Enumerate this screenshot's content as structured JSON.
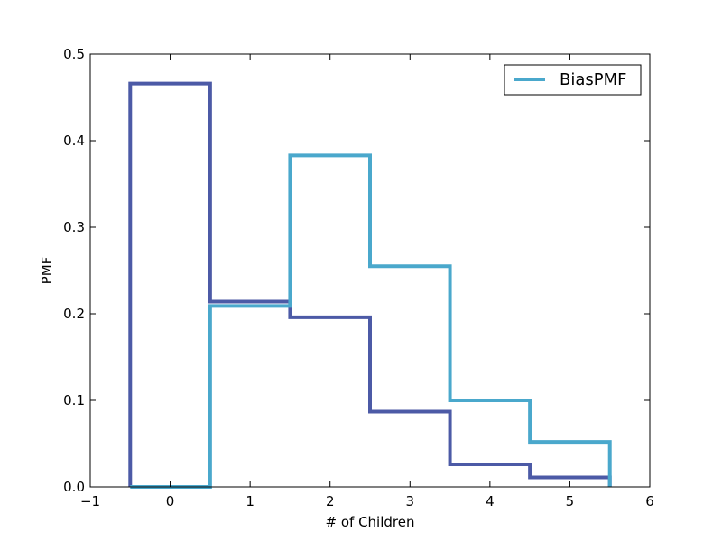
{
  "chart_data": {
    "type": "line",
    "style": "step",
    "xlabel": "# of Children",
    "ylabel": "PMF",
    "xlim": [
      -1,
      6
    ],
    "ylim": [
      0,
      0.5
    ],
    "xticks": [
      -1,
      0,
      1,
      2,
      3,
      4,
      5,
      6
    ],
    "yticks": [
      0.0,
      0.1,
      0.2,
      0.3,
      0.4,
      0.5
    ],
    "xtick_labels": [
      "−1",
      "0",
      "1",
      "2",
      "3",
      "4",
      "5",
      "6"
    ],
    "ytick_labels": [
      "0.0",
      "0.1",
      "0.2",
      "0.3",
      "0.4",
      "0.5"
    ],
    "legend_position": "top-right",
    "grid": false,
    "series": [
      {
        "x": [
          0,
          1,
          2,
          3,
          4,
          5
        ],
        "values": [
          0.466,
          0.214,
          0.196,
          0.087,
          0.026,
          0.011
        ],
        "color": "#4c5aa6"
      },
      {
        "name": "BiasPMF",
        "x": [
          0,
          1,
          2,
          3,
          4,
          5
        ],
        "values": [
          0.0,
          0.209,
          0.383,
          0.255,
          0.1,
          0.052
        ],
        "color": "#4aa8cc"
      }
    ]
  }
}
